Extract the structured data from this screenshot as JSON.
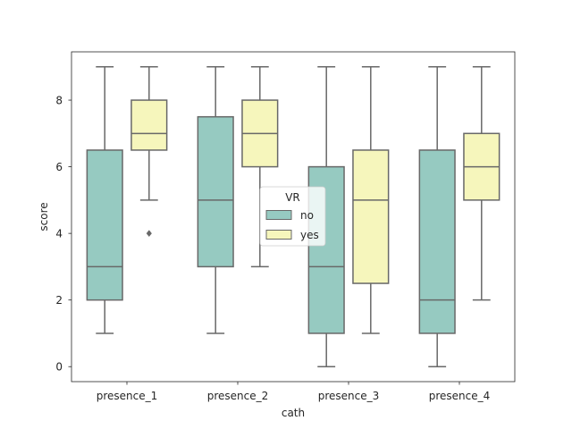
{
  "chart_data": {
    "type": "box",
    "xlabel": "cath",
    "ylabel": "score",
    "categories": [
      "presence_1",
      "presence_2",
      "presence_3",
      "presence_4"
    ],
    "ylim": [
      -0.45,
      9.45
    ],
    "yticks": [
      0,
      2,
      4,
      6,
      8
    ],
    "legend": {
      "title": "VR",
      "placement": "center"
    },
    "series": [
      {
        "name": "no",
        "color": "#96cac1",
        "boxes": [
          {
            "min": 1,
            "q1": 2,
            "median": 3,
            "q3": 6.5,
            "max": 9,
            "outliers": []
          },
          {
            "min": 1,
            "q1": 3,
            "median": 5,
            "q3": 7.5,
            "max": 9,
            "outliers": []
          },
          {
            "min": 0,
            "q1": 1,
            "median": 3,
            "q3": 6,
            "max": 9,
            "outliers": []
          },
          {
            "min": 0,
            "q1": 1,
            "median": 2,
            "q3": 6.5,
            "max": 9,
            "outliers": []
          }
        ]
      },
      {
        "name": "yes",
        "color": "#f6f6bc",
        "boxes": [
          {
            "min": 5,
            "q1": 6.5,
            "median": 7,
            "q3": 8,
            "max": 9,
            "outliers": [
              4
            ]
          },
          {
            "min": 3,
            "q1": 6,
            "median": 7,
            "q3": 8,
            "max": 9,
            "outliers": []
          },
          {
            "min": 1,
            "q1": 2.5,
            "median": 5,
            "q3": 6.5,
            "max": 9,
            "outliers": []
          },
          {
            "min": 2,
            "q1": 5,
            "median": 6,
            "q3": 7,
            "max": 9,
            "outliers": []
          }
        ]
      }
    ]
  }
}
